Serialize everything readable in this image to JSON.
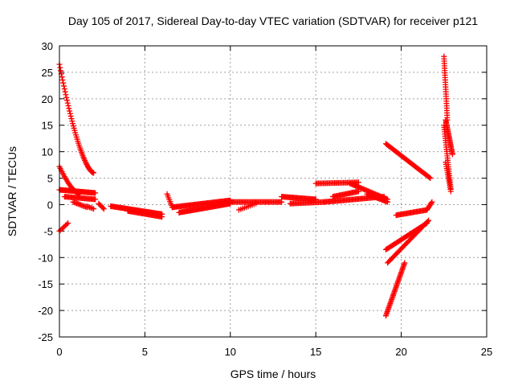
{
  "chart_data": {
    "type": "scatter",
    "title": "Day 105 of 2017, Sidereal Day-to-day VTEC variation (SDTVAR) for receiver p121",
    "xlabel": "GPS time / hours",
    "ylabel": "SDTVAR / TECUs",
    "xlim": [
      0,
      25
    ],
    "ylim": [
      -25,
      30
    ],
    "xticks": [
      0,
      5,
      10,
      15,
      20,
      25
    ],
    "yticks": [
      -25,
      -20,
      -15,
      -10,
      -5,
      0,
      5,
      10,
      15,
      20,
      25,
      30
    ],
    "grid": true,
    "marker": "plus",
    "color": "#ff0000",
    "segments": [
      {
        "x0": 0.0,
        "y0": 26.5,
        "x1": 2.0,
        "y1": 6.0,
        "n": 55,
        "curve": "decay"
      },
      {
        "x0": 0.0,
        "y0": 7.2,
        "x1": 1.2,
        "y1": 2.0,
        "n": 25,
        "curve": "decay"
      },
      {
        "x0": 0.0,
        "y0": 2.8,
        "x1": 2.1,
        "y1": 2.2,
        "n": 40
      },
      {
        "x0": 0.3,
        "y0": 1.5,
        "x1": 2.1,
        "y1": 1.0,
        "n": 30
      },
      {
        "x0": 0.0,
        "y0": -5.0,
        "x1": 0.5,
        "y1": -3.5,
        "n": 8
      },
      {
        "x0": 0.8,
        "y0": 0.5,
        "x1": 1.6,
        "y1": -0.5,
        "n": 12
      },
      {
        "x0": 1.6,
        "y0": -0.3,
        "x1": 2.0,
        "y1": -0.8,
        "n": 6
      },
      {
        "x0": 2.3,
        "y0": 0.2,
        "x1": 2.6,
        "y1": -0.8,
        "n": 6
      },
      {
        "x0": 3.0,
        "y0": -0.3,
        "x1": 6.0,
        "y1": -1.8,
        "n": 55
      },
      {
        "x0": 4.0,
        "y0": -1.2,
        "x1": 6.0,
        "y1": -2.3,
        "n": 35
      },
      {
        "x0": 6.3,
        "y0": 2.0,
        "x1": 6.6,
        "y1": -0.5,
        "n": 8
      },
      {
        "x0": 6.6,
        "y0": -0.5,
        "x1": 10.0,
        "y1": 0.8,
        "n": 60
      },
      {
        "x0": 7.0,
        "y0": -1.5,
        "x1": 10.0,
        "y1": 0.2,
        "n": 55
      },
      {
        "x0": 10.0,
        "y0": 0.5,
        "x1": 13.0,
        "y1": 0.5,
        "n": 45
      },
      {
        "x0": 10.5,
        "y0": -1.0,
        "x1": 11.5,
        "y1": 0.2,
        "n": 10
      },
      {
        "x0": 13.0,
        "y0": 1.5,
        "x1": 15.0,
        "y1": 1.0,
        "n": 35
      },
      {
        "x0": 13.5,
        "y0": 0.2,
        "x1": 15.5,
        "y1": 0.5,
        "n": 30
      },
      {
        "x0": 15.0,
        "y0": 4.0,
        "x1": 17.5,
        "y1": 4.2,
        "n": 35
      },
      {
        "x0": 15.5,
        "y0": 0.5,
        "x1": 19.0,
        "y1": 1.5,
        "n": 55
      },
      {
        "x0": 16.0,
        "y0": 1.5,
        "x1": 17.5,
        "y1": 2.5,
        "n": 25
      },
      {
        "x0": 17.0,
        "y0": 4.0,
        "x1": 19.2,
        "y1": 1.0,
        "n": 35
      },
      {
        "x0": 18.0,
        "y0": 2.0,
        "x1": 19.2,
        "y1": 0.5,
        "n": 20
      },
      {
        "x0": 19.1,
        "y0": 11.5,
        "x1": 21.7,
        "y1": 5.0,
        "n": 50
      },
      {
        "x0": 19.7,
        "y0": -2.0,
        "x1": 21.5,
        "y1": -1.0,
        "n": 30
      },
      {
        "x0": 19.1,
        "y0": -8.5,
        "x1": 21.5,
        "y1": -3.5,
        "n": 40
      },
      {
        "x0": 19.2,
        "y0": -11.0,
        "x1": 21.6,
        "y1": -3.0,
        "n": 40
      },
      {
        "x0": 19.1,
        "y0": -21.0,
        "x1": 20.2,
        "y1": -11.0,
        "n": 40
      },
      {
        "x0": 21.5,
        "y0": -1.0,
        "x1": 21.8,
        "y1": 0.5,
        "n": 8
      },
      {
        "x0": 22.5,
        "y0": 28.0,
        "x1": 22.7,
        "y1": 16.0,
        "n": 28
      },
      {
        "x0": 22.6,
        "y0": 16.0,
        "x1": 23.0,
        "y1": 9.5,
        "n": 28
      },
      {
        "x0": 22.5,
        "y0": 15.0,
        "x1": 22.9,
        "y1": 3.0,
        "n": 30
      },
      {
        "x0": 22.6,
        "y0": 8.0,
        "x1": 22.9,
        "y1": 2.5,
        "n": 15
      }
    ]
  }
}
